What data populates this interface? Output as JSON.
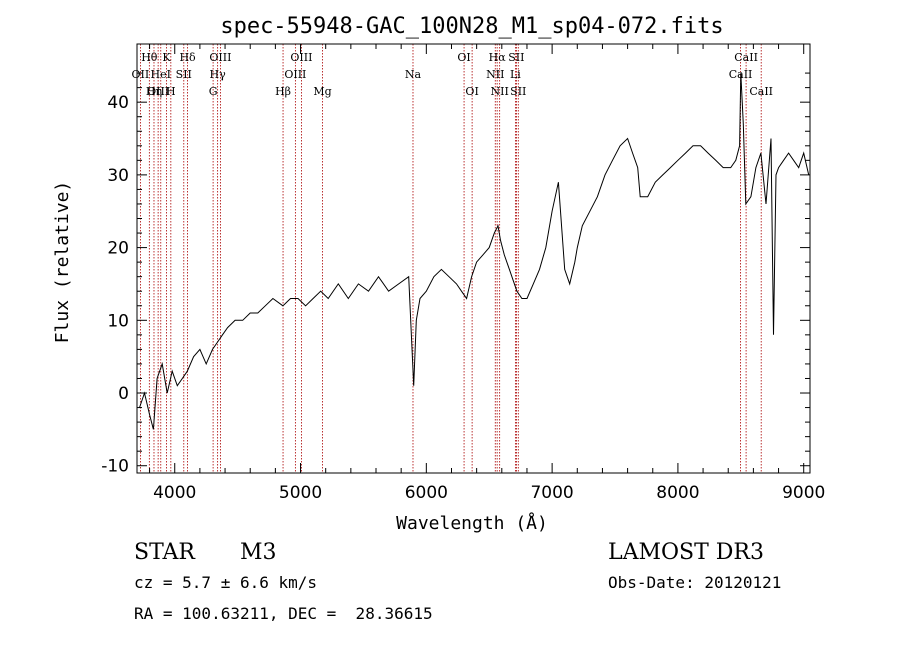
{
  "chart_data": {
    "type": "line",
    "title": "spec-55948-GAC_100N28_M1_sp04-072.fits",
    "xlabel": "Wavelength (Å)",
    "ylabel": "Flux (relative)",
    "xlim": [
      3700,
      9050
    ],
    "ylim": [
      -11,
      48
    ],
    "xticks": [
      4000,
      5000,
      6000,
      7000,
      8000,
      9000
    ],
    "yticks": [
      -10,
      0,
      10,
      20,
      30,
      40
    ],
    "grid": false,
    "line_color": "#000000",
    "marker_color": "#aa0000",
    "series": [
      {
        "x": [
          3720,
          3760,
          3800,
          3830,
          3860,
          3900,
          3940,
          3980,
          4020,
          4060,
          4100,
          4150,
          4200,
          4250,
          4300,
          4340,
          4380,
          4420,
          4480,
          4540,
          4600,
          4660,
          4720,
          4780,
          4860,
          4920,
          4980,
          5040,
          5100,
          5160,
          5220,
          5300,
          5380,
          5460,
          5540,
          5620,
          5700,
          5780,
          5860,
          5900,
          5920,
          5950,
          6000,
          6060,
          6120,
          6180,
          6240,
          6280,
          6320,
          6360,
          6400,
          6450,
          6500,
          6540,
          6570,
          6590,
          6620,
          6660,
          6700,
          6720,
          6760,
          6800,
          6850,
          6900,
          6950,
          7000,
          7050,
          7100,
          7140,
          7180,
          7200,
          7240,
          7300,
          7360,
          7420,
          7480,
          7540,
          7600,
          7640,
          7680,
          7700,
          7760,
          7820,
          7880,
          7940,
          8000,
          8060,
          8120,
          8180,
          8240,
          8300,
          8360,
          8420,
          8460,
          8490,
          8500,
          8520,
          8540,
          8580,
          8620,
          8660,
          8700,
          8740,
          8760,
          8780,
          8800,
          8840,
          8880,
          8920,
          8960,
          9000,
          9040
        ],
        "y": [
          -2,
          0,
          -3,
          -5,
          2,
          4,
          0,
          3,
          1,
          2,
          3,
          5,
          6,
          4,
          6,
          7,
          8,
          9,
          10,
          10,
          11,
          11,
          12,
          13,
          12,
          13,
          13,
          12,
          13,
          14,
          13,
          15,
          13,
          15,
          14,
          16,
          14,
          15,
          16,
          1,
          10,
          13,
          14,
          16,
          17,
          16,
          15,
          14,
          13,
          16,
          18,
          19,
          20,
          22,
          23,
          21,
          19,
          17,
          15,
          14,
          13,
          13,
          15,
          17,
          20,
          25,
          29,
          17,
          15,
          18,
          20,
          23,
          25,
          27,
          30,
          32,
          34,
          35,
          33,
          31,
          27,
          27,
          29,
          30,
          31,
          32,
          33,
          34,
          34,
          33,
          32,
          31,
          31,
          32,
          34,
          44,
          37,
          26,
          27,
          31,
          33,
          26,
          35,
          8,
          30,
          31,
          32,
          33,
          32,
          31,
          33,
          30
        ]
      }
    ],
    "annotations": [
      {
        "label": "Hθ",
        "wavelength": 3798,
        "row": 0
      },
      {
        "label": "OII",
        "wavelength": 3727,
        "row": 1
      },
      {
        "label": "OIII",
        "wavelength": 3868,
        "row": 2
      },
      {
        "label": "K",
        "wavelength": 3934,
        "row": 0
      },
      {
        "label": "HeI",
        "wavelength": 3889,
        "row": 1
      },
      {
        "label": "Hη",
        "wavelength": 3835,
        "row": 2
      },
      {
        "label": "SII",
        "wavelength": 4072,
        "row": 1
      },
      {
        "label": "H",
        "wavelength": 3969,
        "row": 2
      },
      {
        "label": "Hδ",
        "wavelength": 4102,
        "row": 0
      },
      {
        "label": "OIII",
        "wavelength": 4363,
        "row": 0
      },
      {
        "label": "Hγ",
        "wavelength": 4341,
        "row": 1
      },
      {
        "label": "G",
        "wavelength": 4305,
        "row": 2
      },
      {
        "label": "OIII",
        "wavelength": 5007,
        "row": 0
      },
      {
        "label": "OIII",
        "wavelength": 4959,
        "row": 1
      },
      {
        "label": "Hβ",
        "wavelength": 4861,
        "row": 2
      },
      {
        "label": "Mg",
        "wavelength": 5175,
        "row": 2
      },
      {
        "label": "Na",
        "wavelength": 5894,
        "row": 1
      },
      {
        "label": "OI",
        "wavelength": 6300,
        "row": 0
      },
      {
        "label": "OI",
        "wavelength": 6364,
        "row": 2
      },
      {
        "label": "Hα",
        "wavelength": 6563,
        "row": 0
      },
      {
        "label": "SII",
        "wavelength": 6716,
        "row": 0
      },
      {
        "label": "NII",
        "wavelength": 6548,
        "row": 1
      },
      {
        "label": "Li",
        "wavelength": 6708,
        "row": 1
      },
      {
        "label": "NII",
        "wavelength": 6583,
        "row": 2
      },
      {
        "label": "SII",
        "wavelength": 6731,
        "row": 2
      },
      {
        "label": "CaII",
        "wavelength": 8542,
        "row": 0
      },
      {
        "label": "CaII",
        "wavelength": 8498,
        "row": 1
      },
      {
        "label": "CaII",
        "wavelength": 8662,
        "row": 2
      }
    ]
  },
  "info": {
    "object_class": "STAR",
    "subclass": "M3",
    "survey": "LAMOST DR3",
    "cz": "cz = 5.7 ± 6.6 km/s",
    "obs_date": "Obs-Date: 20120121",
    "coords": "RA = 100.63211, DEC =  28.36615"
  }
}
